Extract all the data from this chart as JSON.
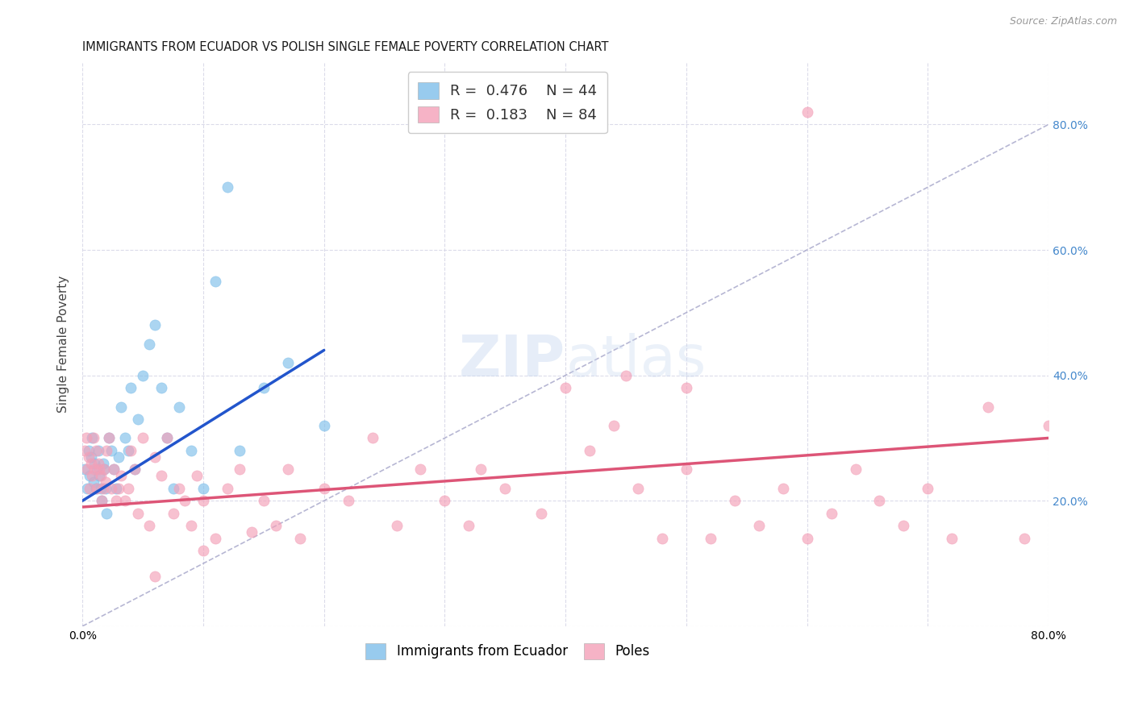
{
  "title": "IMMIGRANTS FROM ECUADOR VS POLISH SINGLE FEMALE POVERTY CORRELATION CHART",
  "source": "Source: ZipAtlas.com",
  "ylabel": "Single Female Poverty",
  "xlim": [
    0.0,
    0.8
  ],
  "ylim": [
    0.0,
    0.9
  ],
  "x_ticks": [
    0.0,
    0.1,
    0.2,
    0.3,
    0.4,
    0.5,
    0.6,
    0.7,
    0.8
  ],
  "y_ticks_left": [
    0.0,
    0.2,
    0.4,
    0.6,
    0.8
  ],
  "y_ticks_right": [
    0.2,
    0.4,
    0.6,
    0.8
  ],
  "background_color": "#ffffff",
  "grid_color": "#d8d8e8",
  "color_blue": "#7fbfea",
  "color_pink": "#f4a0b8",
  "color_blue_line": "#2255cc",
  "color_pink_line": "#dd5577",
  "color_dashed": "#aaaacc",
  "ecuador_x": [
    0.002,
    0.004,
    0.005,
    0.006,
    0.007,
    0.008,
    0.009,
    0.01,
    0.011,
    0.012,
    0.013,
    0.014,
    0.015,
    0.016,
    0.017,
    0.018,
    0.019,
    0.02,
    0.022,
    0.024,
    0.026,
    0.028,
    0.03,
    0.032,
    0.035,
    0.038,
    0.04,
    0.043,
    0.046,
    0.05,
    0.055,
    0.06,
    0.065,
    0.07,
    0.075,
    0.08,
    0.09,
    0.1,
    0.11,
    0.12,
    0.13,
    0.15,
    0.17,
    0.2
  ],
  "ecuador_y": [
    0.25,
    0.22,
    0.28,
    0.24,
    0.27,
    0.3,
    0.23,
    0.26,
    0.22,
    0.25,
    0.28,
    0.24,
    0.22,
    0.2,
    0.26,
    0.25,
    0.22,
    0.18,
    0.3,
    0.28,
    0.25,
    0.22,
    0.27,
    0.35,
    0.3,
    0.28,
    0.38,
    0.25,
    0.33,
    0.4,
    0.45,
    0.48,
    0.38,
    0.3,
    0.22,
    0.35,
    0.28,
    0.22,
    0.55,
    0.7,
    0.28,
    0.38,
    0.42,
    0.32
  ],
  "poles_x": [
    0.002,
    0.003,
    0.004,
    0.005,
    0.006,
    0.007,
    0.008,
    0.009,
    0.01,
    0.011,
    0.012,
    0.013,
    0.014,
    0.015,
    0.016,
    0.017,
    0.018,
    0.019,
    0.02,
    0.022,
    0.024,
    0.026,
    0.028,
    0.03,
    0.032,
    0.035,
    0.038,
    0.04,
    0.043,
    0.046,
    0.05,
    0.055,
    0.06,
    0.065,
    0.07,
    0.075,
    0.08,
    0.085,
    0.09,
    0.095,
    0.1,
    0.11,
    0.12,
    0.13,
    0.14,
    0.15,
    0.16,
    0.17,
    0.18,
    0.2,
    0.22,
    0.24,
    0.26,
    0.28,
    0.3,
    0.32,
    0.35,
    0.38,
    0.4,
    0.42,
    0.44,
    0.46,
    0.48,
    0.5,
    0.52,
    0.54,
    0.56,
    0.58,
    0.6,
    0.62,
    0.64,
    0.66,
    0.68,
    0.7,
    0.72,
    0.75,
    0.78,
    0.8,
    0.33,
    0.45,
    0.5,
    0.6,
    0.06,
    0.1
  ],
  "poles_y": [
    0.28,
    0.3,
    0.25,
    0.27,
    0.22,
    0.26,
    0.24,
    0.3,
    0.25,
    0.28,
    0.22,
    0.26,
    0.25,
    0.24,
    0.2,
    0.22,
    0.25,
    0.23,
    0.28,
    0.3,
    0.22,
    0.25,
    0.2,
    0.22,
    0.24,
    0.2,
    0.22,
    0.28,
    0.25,
    0.18,
    0.3,
    0.16,
    0.27,
    0.24,
    0.3,
    0.18,
    0.22,
    0.2,
    0.16,
    0.24,
    0.2,
    0.14,
    0.22,
    0.25,
    0.15,
    0.2,
    0.16,
    0.25,
    0.14,
    0.22,
    0.2,
    0.3,
    0.16,
    0.25,
    0.2,
    0.16,
    0.22,
    0.18,
    0.38,
    0.28,
    0.32,
    0.22,
    0.14,
    0.25,
    0.14,
    0.2,
    0.16,
    0.22,
    0.14,
    0.18,
    0.25,
    0.2,
    0.16,
    0.22,
    0.14,
    0.35,
    0.14,
    0.32,
    0.25,
    0.4,
    0.38,
    0.82,
    0.08,
    0.12
  ],
  "blue_line_x": [
    0.0,
    0.2
  ],
  "blue_line_y": [
    0.2,
    0.44
  ],
  "pink_line_x": [
    0.0,
    0.8
  ],
  "pink_line_y": [
    0.19,
    0.3
  ]
}
